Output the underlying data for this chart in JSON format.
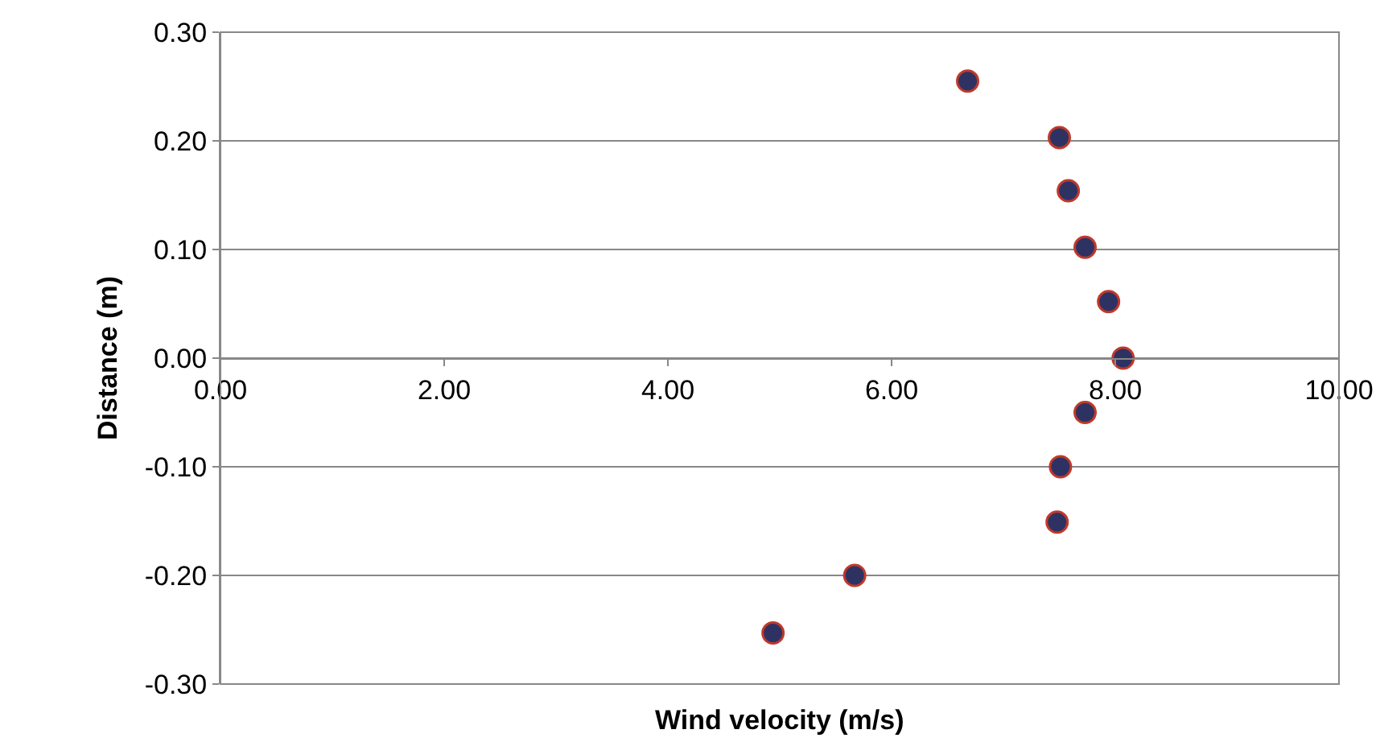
{
  "chart_data": {
    "type": "scatter",
    "xlabel": "Wind velocity (m/s)",
    "ylabel": "Distance (m)",
    "xlim": [
      0,
      10
    ],
    "ylim": [
      -0.3,
      0.3
    ],
    "xticks": [
      {
        "value": 0,
        "label": "0.00"
      },
      {
        "value": 2,
        "label": "2.00"
      },
      {
        "value": 4,
        "label": "4.00"
      },
      {
        "value": 6,
        "label": "6.00"
      },
      {
        "value": 8,
        "label": "8.00"
      },
      {
        "value": 10,
        "label": "10.00"
      }
    ],
    "yticks": [
      {
        "value": -0.3,
        "label": "-0.30"
      },
      {
        "value": -0.2,
        "label": "-0.20"
      },
      {
        "value": -0.1,
        "label": "-0.10"
      },
      {
        "value": 0,
        "label": "0.00"
      },
      {
        "value": 0.1,
        "label": "0.10"
      },
      {
        "value": 0.2,
        "label": "0.20"
      },
      {
        "value": 0.3,
        "label": "0.30"
      }
    ],
    "grid": "y",
    "marker": "circle",
    "series": [
      {
        "color": "#2e3262",
        "x": [
          6.68,
          7.5,
          7.58,
          7.73,
          7.94,
          8.07,
          7.73,
          7.51,
          7.48,
          5.67,
          4.94
        ],
        "values": [
          0.255,
          0.203,
          0.154,
          0.102,
          0.052,
          0.0,
          -0.05,
          -0.1,
          -0.151,
          -0.2,
          -0.253
        ]
      }
    ]
  }
}
